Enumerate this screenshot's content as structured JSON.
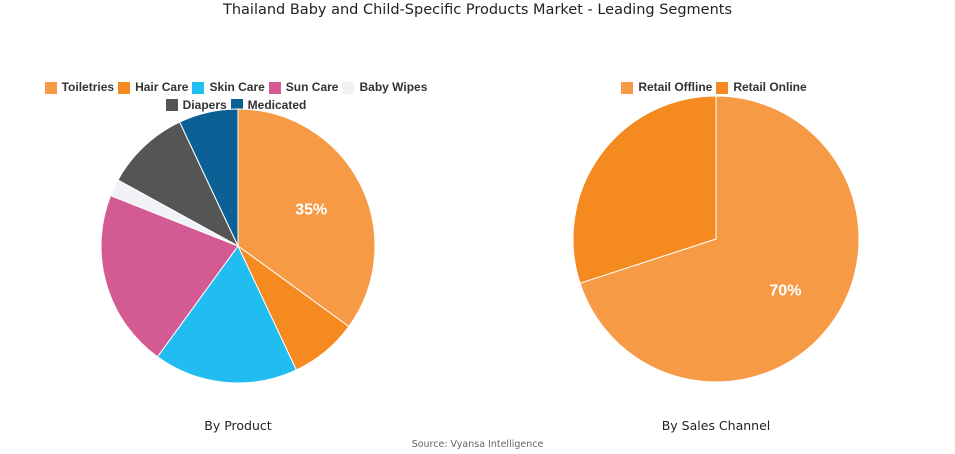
{
  "title": "Thailand Baby and Child-Specific Products Market - Leading Segments",
  "source": "Source: Vyansa Intelligence",
  "chart_data": [
    {
      "type": "pie",
      "subtitle": "By Product",
      "legend_position": "top",
      "categories": [
        "Toiletries",
        "Hair Care",
        "Skin Care",
        "Sun Care",
        "Baby Wipes",
        "Diapers",
        "Medicated"
      ],
      "values": [
        35,
        8,
        17,
        21,
        2,
        10,
        7
      ],
      "colors": [
        "#F79A45",
        "#F58A20",
        "#22BDF0",
        "#D45A94",
        "#F0F2F6",
        "#555555",
        "#0B6196"
      ],
      "data_labels": [
        "35%",
        "",
        "",
        "",
        "",
        "",
        ""
      ]
    },
    {
      "type": "pie",
      "subtitle": "By Sales Channel",
      "legend_position": "top",
      "categories": [
        "Retail Offline",
        "Retail Online"
      ],
      "values": [
        70,
        30
      ],
      "colors": [
        "#F79A45",
        "#F58A20"
      ],
      "data_labels": [
        "70%",
        ""
      ]
    }
  ]
}
